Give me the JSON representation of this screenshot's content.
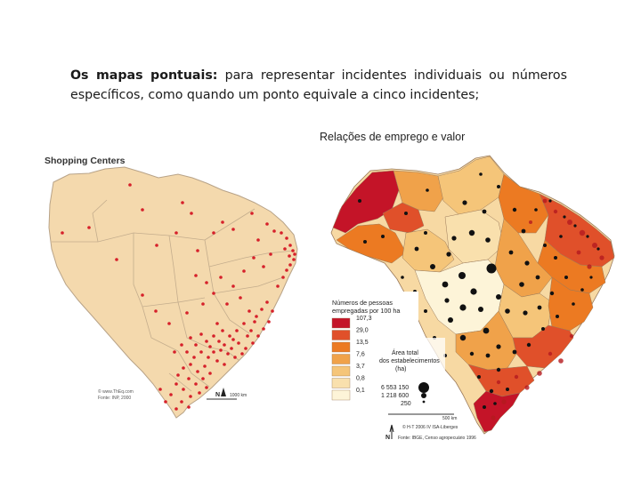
{
  "slide": {
    "lead": "Os mapas pontuais:",
    "text": " para representar incidentes individuais ou números específicos, como quando um ponto equivale a cinco incidentes;"
  },
  "map_left": {
    "title": "Shopping Centers",
    "footer_line1": "© www.ThEq.com",
    "footer_line2": "Fonte: INP, 2000",
    "north": "N",
    "scale": "1000 km",
    "colors": {
      "land": "#f4d9ad",
      "border": "#b8a388",
      "dot": "#d6202a"
    }
  },
  "map_right": {
    "title": "Relações de emprego e valor",
    "legend_title_line1": "Números de pessoas",
    "legend_title_line2": "empregadas por 100 ha",
    "legend_values": [
      "107,3",
      "29,0",
      "13,5",
      "7,6",
      "3,7",
      "0,8",
      "0,1"
    ],
    "legend_colors": [
      "#c41428",
      "#e0502a",
      "#ec7a22",
      "#f0a24a",
      "#f5c579",
      "#f9e0ad",
      "#fdf4d8"
    ],
    "area_title_line1": "Área total",
    "area_title_line2": "dos estabelecimentos",
    "area_title_line3": "(ha)",
    "area_values": [
      "6 553 150",
      "1 218 600",
      "250"
    ],
    "scale": "500 km",
    "credit": "© H-T 2006 IV ISA-Liberges",
    "source": "Fonte: IBGE, Censo agropecuário 1996",
    "north": "N"
  }
}
